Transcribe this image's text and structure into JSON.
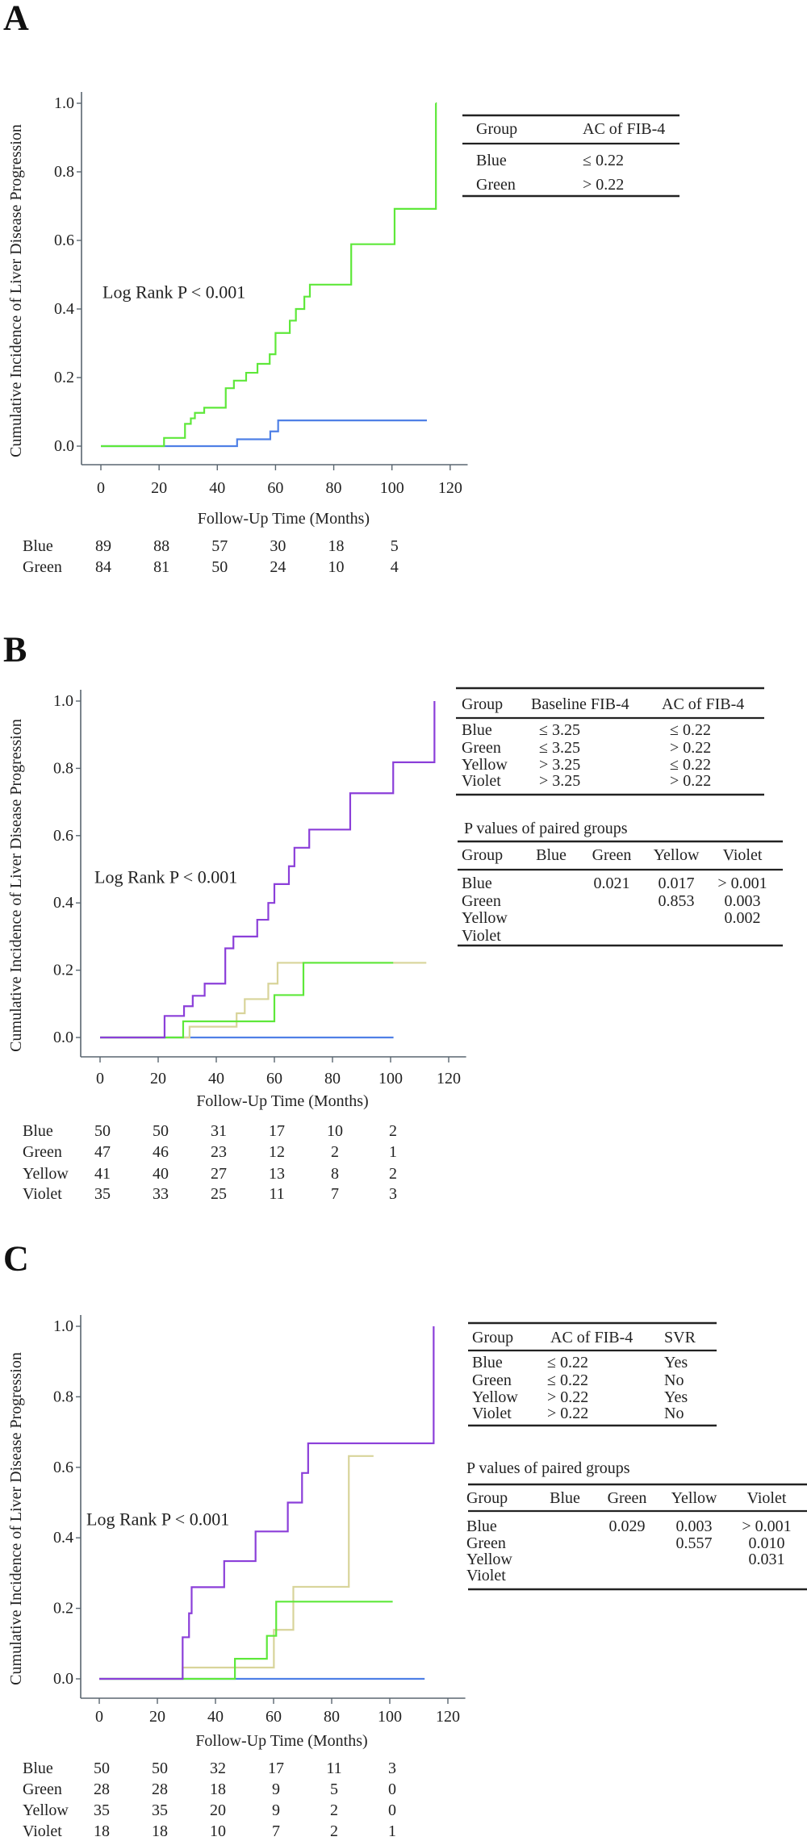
{
  "colors": {
    "Blue": "#4f80e6",
    "Green": "#5ee83a",
    "Yellow": "#d8d49a",
    "Violet": "#8b3fd9",
    "axis": "#5a6670"
  },
  "chart_data": [
    {
      "panel_label": "A",
      "type": "line",
      "style": "step",
      "xlabel": "Follow-Up Time (Months)",
      "ylabel": "Cumulative Incidence of Liver Disease Progression",
      "xlim": [
        0,
        120
      ],
      "ylim": [
        0,
        1
      ],
      "xticks": [
        "0",
        "20",
        "40",
        "60",
        "80",
        "100",
        "120"
      ],
      "yticks": [
        "0.0",
        "0.2",
        "0.4",
        "0.6",
        "0.8",
        "1.0"
      ],
      "annotation": "Log Rank P < 0.001",
      "series": [
        {
          "name": "Blue",
          "end": 112,
          "steps": [
            [
              0,
              0
            ],
            [
              46.8,
              0.02
            ],
            [
              58.2,
              0.043
            ],
            [
              60.9,
              0.075
            ]
          ]
        },
        {
          "name": "Green",
          "end": 115,
          "steps": [
            [
              0,
              0
            ],
            [
              21.7,
              0.024
            ],
            [
              28.9,
              0.065
            ],
            [
              30.9,
              0.081
            ],
            [
              32.3,
              0.097
            ],
            [
              35.5,
              0.112
            ],
            [
              42.9,
              0.169
            ],
            [
              45.7,
              0.191
            ],
            [
              49.9,
              0.214
            ],
            [
              53.8,
              0.24
            ],
            [
              58,
              0.268
            ],
            [
              60,
              0.33
            ],
            [
              64.9,
              0.366
            ],
            [
              67,
              0.4
            ],
            [
              69.9,
              0.436
            ],
            [
              71.8,
              0.471
            ],
            [
              86,
              0.589
            ],
            [
              100.9,
              0.692
            ],
            [
              115.1,
              1.0
            ]
          ]
        }
      ],
      "at_risk": {
        "times": [
          0,
          20,
          40,
          60,
          80,
          100
        ],
        "rows": [
          {
            "group": "Blue",
            "values": [
              "89",
              "88",
              "57",
              "30",
              "18",
              "5"
            ]
          },
          {
            "group": "Green",
            "values": [
              "84",
              "81",
              "50",
              "24",
              "10",
              "4"
            ]
          }
        ]
      },
      "group_table": {
        "headers": [
          "Group",
          "AC of FIB-4"
        ],
        "rows": [
          [
            "Blue",
            "≤ 0.22"
          ],
          [
            "Green",
            "> 0.22"
          ]
        ]
      }
    },
    {
      "panel_label": "B",
      "type": "line",
      "style": "step",
      "xlabel": "Follow-Up Time (Months)",
      "ylabel": "Cumulative Incidence of Liver Disease Progression",
      "xlim": [
        0,
        120
      ],
      "ylim": [
        0,
        1
      ],
      "xticks": [
        "0",
        "20",
        "40",
        "60",
        "80",
        "100",
        "120"
      ],
      "yticks": [
        "0.0",
        "0.2",
        "0.4",
        "0.6",
        "0.8",
        "1.0"
      ],
      "annotation": "Log Rank P < 0.001",
      "series": [
        {
          "name": "Blue",
          "end": 101,
          "steps": [
            [
              0,
              0
            ]
          ]
        },
        {
          "name": "Yellow",
          "end": 112.3,
          "steps": [
            [
              0,
              0
            ],
            [
              30.8,
              0.032
            ],
            [
              47,
              0.072
            ],
            [
              49.8,
              0.114
            ],
            [
              57.9,
              0.16
            ],
            [
              61.1,
              0.222
            ]
          ]
        },
        {
          "name": "Green",
          "end": 100.9,
          "steps": [
            [
              0,
              0
            ],
            [
              28.6,
              0.048
            ],
            [
              60,
              0.126
            ],
            [
              70,
              0.222
            ]
          ]
        },
        {
          "name": "Violet",
          "end": 115.1,
          "steps": [
            [
              0,
              0
            ],
            [
              22.2,
              0.064
            ],
            [
              28.9,
              0.093
            ],
            [
              31.9,
              0.124
            ],
            [
              36,
              0.16
            ],
            [
              43.1,
              0.265
            ],
            [
              45.9,
              0.3
            ],
            [
              54.1,
              0.35
            ],
            [
              57.9,
              0.4
            ],
            [
              60,
              0.456
            ],
            [
              65,
              0.509
            ],
            [
              66.9,
              0.564
            ],
            [
              72,
              0.618
            ],
            [
              86.1,
              0.726
            ],
            [
              100.9,
              0.818
            ],
            [
              115.1,
              1.0
            ]
          ]
        }
      ],
      "at_risk": {
        "times": [
          0,
          20,
          40,
          60,
          80,
          100
        ],
        "rows": [
          {
            "group": "Blue",
            "values": [
              "50",
              "50",
              "31",
              "17",
              "10",
              "2"
            ]
          },
          {
            "group": "Green",
            "values": [
              "47",
              "46",
              "23",
              "12",
              "2",
              "1"
            ]
          },
          {
            "group": "Yellow",
            "values": [
              "41",
              "40",
              "27",
              "13",
              "8",
              "2"
            ]
          },
          {
            "group": "Violet",
            "values": [
              "35",
              "33",
              "25",
              "11",
              "7",
              "3"
            ]
          }
        ]
      },
      "group_table": {
        "headers": [
          "Group",
          "Baseline FIB-4",
          "AC of FIB-4"
        ],
        "rows": [
          [
            "Blue",
            "≤ 3.25",
            "≤ 0.22"
          ],
          [
            "Green",
            "≤ 3.25",
            "> 0.22"
          ],
          [
            "Yellow",
            "> 3.25",
            "≤ 0.22"
          ],
          [
            "Violet",
            "> 3.25",
            "> 0.22"
          ]
        ]
      },
      "pvalue_table": {
        "title": "P values of paired groups",
        "headers": [
          "Group",
          "Blue",
          "Green",
          "Yellow",
          "Violet"
        ],
        "rows": [
          [
            "Blue",
            "",
            "0.021",
            "0.017",
            "> 0.001"
          ],
          [
            "Green",
            "",
            "",
            "0.853",
            "0.003"
          ],
          [
            "Yellow",
            "",
            "",
            "",
            "0.002"
          ],
          [
            "Violet",
            "",
            "",
            "",
            ""
          ]
        ]
      }
    },
    {
      "panel_label": "C",
      "type": "line",
      "style": "step",
      "xlabel": "Follow-Up Time (Months)",
      "ylabel": "Cumulative Incidence of Liver Disease Progression",
      "xlim": [
        0,
        120
      ],
      "ylim": [
        0,
        1
      ],
      "xticks": [
        "0",
        "20",
        "40",
        "60",
        "80",
        "100",
        "120"
      ],
      "yticks": [
        "0.0",
        "0.2",
        "0.4",
        "0.6",
        "0.8",
        "1.0"
      ],
      "annotation": "Log Rank P < 0.001",
      "series": [
        {
          "name": "Blue",
          "end": 112,
          "steps": [
            [
              0,
              0
            ]
          ]
        },
        {
          "name": "Yellow",
          "end": 94.4,
          "steps": [
            [
              0,
              0
            ],
            [
              28.7,
              0.032
            ],
            [
              60.1,
              0.139
            ],
            [
              66.8,
              0.261
            ],
            [
              85.9,
              0.632
            ]
          ]
        },
        {
          "name": "Green",
          "end": 101,
          "steps": [
            [
              0,
              0
            ],
            [
              46.7,
              0.057
            ],
            [
              57.7,
              0.122
            ],
            [
              60.9,
              0.219
            ]
          ]
        },
        {
          "name": "Violet",
          "end": 115.1,
          "steps": [
            [
              0,
              0
            ],
            [
              28.7,
              0.118
            ],
            [
              30.9,
              0.186
            ],
            [
              31.8,
              0.26
            ],
            [
              43,
              0.334
            ],
            [
              53.8,
              0.418
            ],
            [
              64.9,
              0.5
            ],
            [
              69.8,
              0.584
            ],
            [
              71.9,
              0.668
            ],
            [
              115.1,
              1.0
            ]
          ]
        }
      ],
      "at_risk": {
        "times": [
          0,
          20,
          40,
          60,
          80,
          100
        ],
        "rows": [
          {
            "group": "Blue",
            "values": [
              "50",
              "50",
              "32",
              "17",
              "11",
              "3"
            ]
          },
          {
            "group": "Green",
            "values": [
              "28",
              "28",
              "18",
              "9",
              "5",
              "0"
            ]
          },
          {
            "group": "Yellow",
            "values": [
              "35",
              "35",
              "20",
              "9",
              "2",
              "0"
            ]
          },
          {
            "group": "Violet",
            "values": [
              "18",
              "18",
              "10",
              "7",
              "2",
              "1"
            ]
          }
        ]
      },
      "group_table": {
        "headers": [
          "Group",
          "AC of FIB-4",
          "SVR"
        ],
        "rows": [
          [
            "Blue",
            "≤ 0.22",
            "Yes"
          ],
          [
            "Green",
            "≤ 0.22",
            "No"
          ],
          [
            "Yellow",
            "> 0.22",
            "Yes"
          ],
          [
            "Violet",
            "> 0.22",
            "No"
          ]
        ]
      },
      "pvalue_table": {
        "title": "P values of paired groups",
        "headers": [
          "Group",
          "Blue",
          "Green",
          "Yellow",
          "Violet"
        ],
        "rows": [
          [
            "Blue",
            "",
            "0.029",
            "0.003",
            "> 0.001"
          ],
          [
            "Green",
            "",
            "",
            "0.557",
            "0.010"
          ],
          [
            "Yellow",
            "",
            "",
            "",
            "0.031"
          ],
          [
            "Violet",
            "",
            "",
            "",
            ""
          ]
        ]
      }
    }
  ]
}
